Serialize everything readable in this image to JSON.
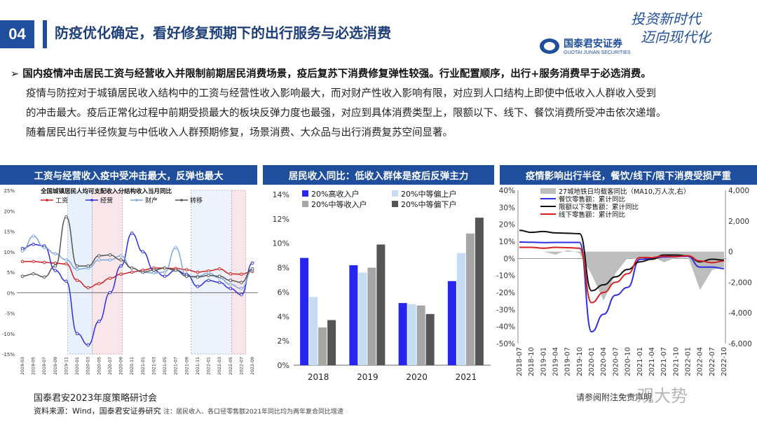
{
  "header": {
    "section_number": "04",
    "title": "防疫优化确定，看好修复预期下的出行服务与必选消费",
    "brand_cn": "国泰君安证券",
    "brand_en": "GUOTAI JUNAN SECURITIES",
    "slogan_line1": "投资新时代",
    "slogan_line2": "迈向现代化"
  },
  "summary": {
    "bullet": "国内疫情冲击居民工资与经营收入并限制前期居民消费场景，疫后复苏下消费修复弹性较强。行业配置顺序，出行+服务消费早于必选消费。",
    "line1": "疫情与防控对于城镇居民收入结构中的工资与经营性收入影响最大，而对财产性收入影响有限，对应到人口结构上即使中低收入人群收入受到",
    "line2": "的冲击最大。疫后正常化过程中前期受损最大的板块反弹力度也最强，对应到具体消费类型上，限额以下、线下、餐饮消费所受冲击依次递增。",
    "line3": "随着居民出行半径恢复与中低收入人群预期修复，场景消费、大众品与出行消费复苏空间显著。"
  },
  "panels": {
    "left_title": "工资与经营收入疫中受冲击最大，反弹也最大",
    "mid_title": "居民收入同比：低收入群体是疫后反弹主力",
    "right_title": "疫情影响出行半径，餐饮/线下/限下消费受损严重"
  },
  "colors": {
    "primary": "#1f4e9c",
    "wage": "#d42020",
    "business": "#2f2fe0",
    "property": "#7aa6db",
    "transfer": "#555555",
    "high": "#2626f0",
    "midhigh": "#c5dcf2",
    "mid": "#a6a6a6",
    "midlow": "#555555",
    "gray": "#bdbdbd"
  },
  "chart_data": [
    {
      "type": "line",
      "title": "全国城镇居民人均可支配收入分结构收入当月同比",
      "x": [
        "2019-03",
        "2019-05",
        "2019-07",
        "2019-09",
        "2019-11",
        "2020-01",
        "2020-03",
        "2020-05",
        "2020-07",
        "2020-09",
        "2020-11",
        "2021-01",
        "2021-03",
        "2021-05",
        "2021-07",
        "2021-09",
        "2021-11",
        "2022-01",
        "2022-03",
        "2022-05",
        "2022-07",
        "2022-09"
      ],
      "ylim": [
        -15,
        25
      ],
      "yticks": [
        "-15%",
        "-10%",
        "-5%",
        "0%",
        "5%",
        "10%",
        "15%",
        "20%",
        "25%"
      ],
      "series": [
        {
          "name": "工资",
          "values": [
            7.6,
            7.6,
            7.4,
            7.2,
            7.0,
            3.0,
            1.2,
            2.2,
            3.5,
            4.5,
            5.0,
            5.5,
            6.0,
            6.0,
            5.9,
            5.6,
            5.0,
            5.3,
            5.8,
            4.6,
            4.5,
            5.2
          ]
        },
        {
          "name": "经营",
          "values": [
            10.8,
            11.8,
            11.4,
            5.4,
            2.8,
            -10.0,
            -12.8,
            -7.0,
            0.0,
            6.5,
            14.5,
            10.0,
            5.5,
            4.0,
            5.5,
            4.5,
            1.5,
            3.0,
            2.5,
            1.0,
            -0.5,
            7.2
          ]
        },
        {
          "name": "财产",
          "values": [
            10.2,
            13.8,
            11.0,
            9.5,
            8.0,
            5.7,
            6.0,
            8.0,
            8.0,
            9.0,
            6.0,
            5.0,
            4.8,
            5.0,
            11.0,
            4.0,
            4.0,
            4.8,
            3.6,
            2.0,
            1.0,
            5.5
          ]
        },
        {
          "name": "转移",
          "values": [
            4.0,
            4.6,
            3.8,
            6.5,
            18.5,
            6.5,
            6.5,
            9.0,
            9.2,
            8.0,
            6.0,
            5.0,
            5.5,
            6.0,
            5.5,
            4.0,
            3.8,
            4.2,
            4.0,
            3.0,
            2.5,
            5.8
          ]
        }
      ]
    },
    {
      "type": "bar",
      "categories": [
        "2018",
        "2019",
        "2020",
        "2021"
      ],
      "ylim": [
        0,
        14
      ],
      "yticks": [
        "0%",
        "2%",
        "4%",
        "6%",
        "8%",
        "10%",
        "12%",
        "14%"
      ],
      "series": [
        {
          "name": "20%高收入户",
          "values": [
            8.8,
            8.2,
            5.1,
            6.9
          ]
        },
        {
          "name": "20%中等偏上户",
          "values": [
            5.6,
            7.6,
            5.0,
            9.2
          ]
        },
        {
          "name": "20%中等收入户",
          "values": [
            3.1,
            8.0,
            4.9,
            10.8
          ]
        },
        {
          "name": "20%中等偏下户",
          "values": [
            3.7,
            9.9,
            4.2,
            12.1
          ]
        }
      ]
    },
    {
      "type": "line",
      "x": [
        "2018-07",
        "2018-10",
        "2019-01",
        "2019-04",
        "2019-07",
        "2019-10",
        "2020-01",
        "2020-04",
        "2020-07",
        "2020-10",
        "2021-01",
        "2021-04",
        "2021-07",
        "2021-10",
        "2022-01",
        "2022-04",
        "2022-07",
        "2022-10"
      ],
      "ylim": [
        -50,
        40
      ],
      "yticks": [
        "-50%",
        "-40%",
        "-30%",
        "-20%",
        "-10%",
        "0%",
        "10%",
        "20%",
        "30%",
        "40%"
      ],
      "y2lim": [
        -6000,
        4000
      ],
      "y2ticks": [
        "-6,000",
        "-4,000",
        "-2,000",
        "0",
        "2,000",
        "4,000"
      ],
      "series": [
        {
          "name": "27城地铁日均载客同比（MA10,万人次,右）",
          "axis": "right",
          "values": [
            0,
            0,
            0,
            -200,
            100,
            -100,
            -1500,
            -3200,
            -1400,
            -400,
            -500,
            -300,
            -700,
            -400,
            -300,
            -2500,
            -1200,
            -1000
          ]
        },
        {
          "name": "餐饮零售额：累计同比",
          "axis": "left",
          "values": [
            9.6,
            9.5,
            9.3,
            9.4,
            9.4,
            9.4,
            -43.1,
            -32.8,
            -21.6,
            -17.0,
            -0.6,
            -0.2,
            0.9,
            1.0,
            1.2,
            -5.1,
            -5.1,
            -6.0
          ]
        },
        {
          "name": "限额以下零售额：累计同比",
          "axis": "left",
          "values": [
            16.5,
            15.3,
            15.8,
            15.0,
            14.8,
            14.5,
            -19.0,
            -15.5,
            -10.8,
            -6.5,
            -2.0,
            -0.5,
            2.0,
            2.0,
            1.5,
            -2.0,
            -0.5,
            -1.0
          ]
        },
        {
          "name": "线下零售额：累计同比",
          "axis": "left",
          "values": [
            6.5,
            6.5,
            6.0,
            6.5,
            6.3,
            6.0,
            -26.0,
            -20.0,
            -14.0,
            -9.0,
            0.5,
            0.5,
            1.3,
            1.0,
            1.5,
            -1.5,
            -2.5,
            -1.5
          ]
        }
      ]
    }
  ],
  "footer": {
    "event": "国泰君安2023年度策略研讨会",
    "source": "资料来源：Wind，国泰君安证券研究",
    "note": "注：居民收入、各口径零售额2021年同比均为两年复合同比增速",
    "disclaimer": "请参阅附注免责声明",
    "watermark": "一观大势"
  }
}
